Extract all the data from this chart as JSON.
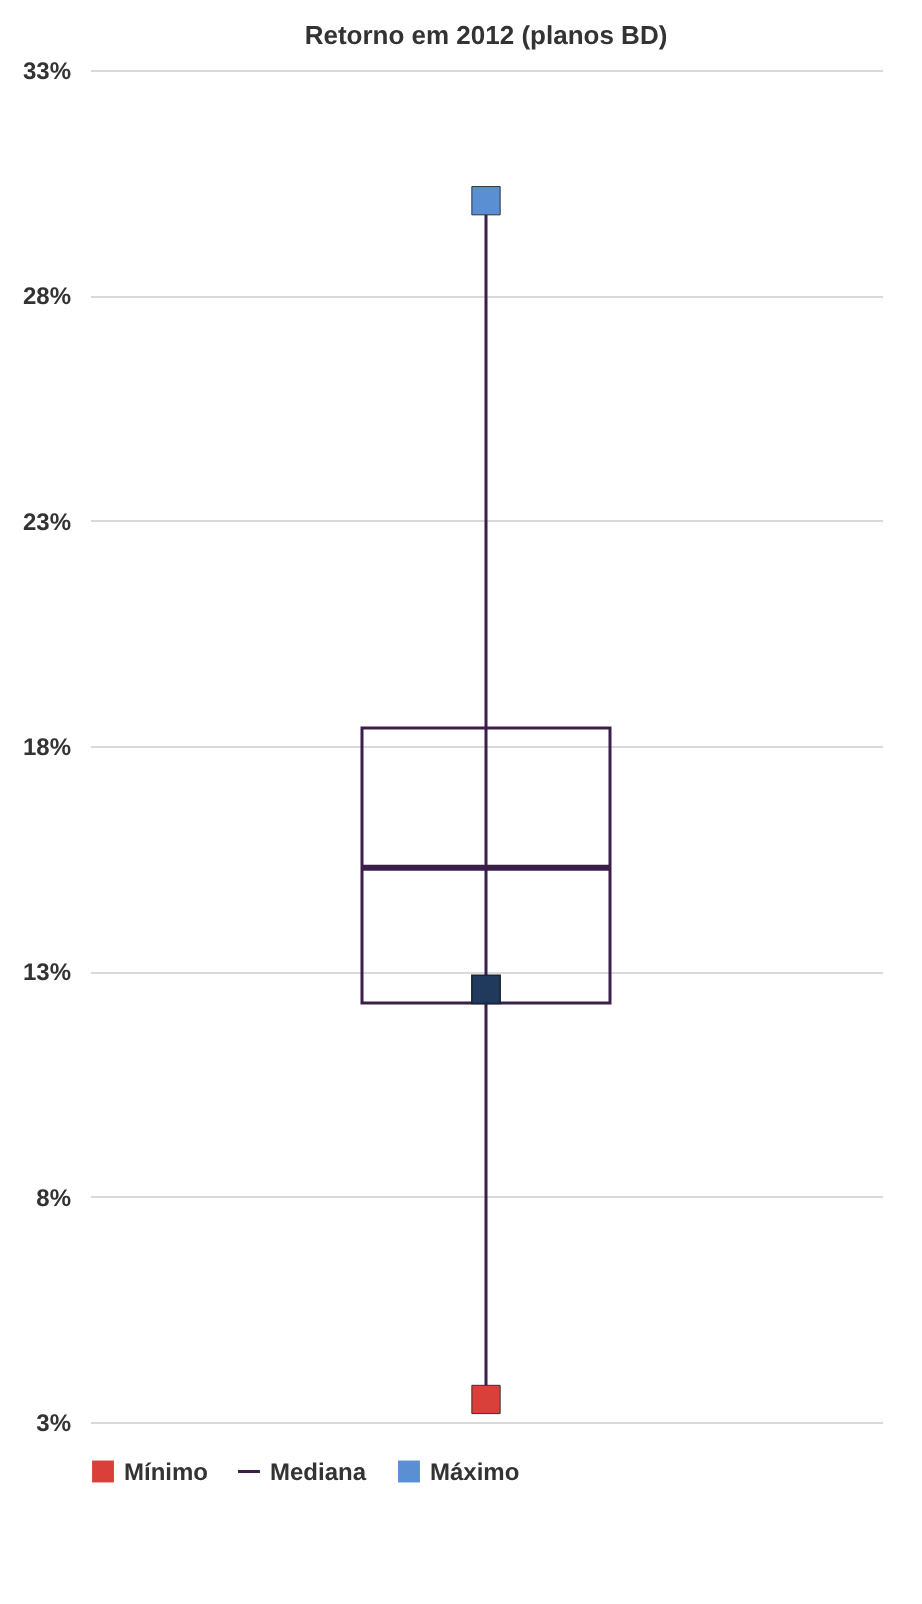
{
  "chart_data": {
    "type": "box",
    "title": "Retorno em 2012 (planos BD)",
    "categories": [
      null
    ],
    "series": [
      {
        "name": "Mínimo",
        "type": "scatter",
        "marker": "square",
        "color": "#d9403a",
        "values": [
          3.5
        ]
      },
      {
        "name": "Mediana",
        "color": "#3b1f4a",
        "boxes": [
          {
            "low": 3.5,
            "q1": 12.3,
            "median": 15.3,
            "q3": 18.4,
            "high": 30.1
          }
        ]
      },
      {
        "name": "Máximo",
        "type": "scatter",
        "marker": "square",
        "color": "#5b8fd4",
        "values": [
          30.1
        ]
      },
      {
        "type": "scatter",
        "marker": "square",
        "color": "#1f3a5c",
        "values": [
          12.6
        ]
      }
    ],
    "ylim": [
      3,
      33
    ],
    "yticks": [
      {
        "value": 3,
        "label": "3%"
      },
      {
        "value": 8,
        "label": "8%"
      },
      {
        "value": 13,
        "label": "13%"
      },
      {
        "value": 18,
        "label": "18%"
      },
      {
        "value": 23,
        "label": "23%"
      },
      {
        "value": 28,
        "label": "28%"
      },
      {
        "value": 33,
        "label": "33%"
      }
    ],
    "grid": "y",
    "legend": "bottom",
    "tick_labels": "y"
  }
}
